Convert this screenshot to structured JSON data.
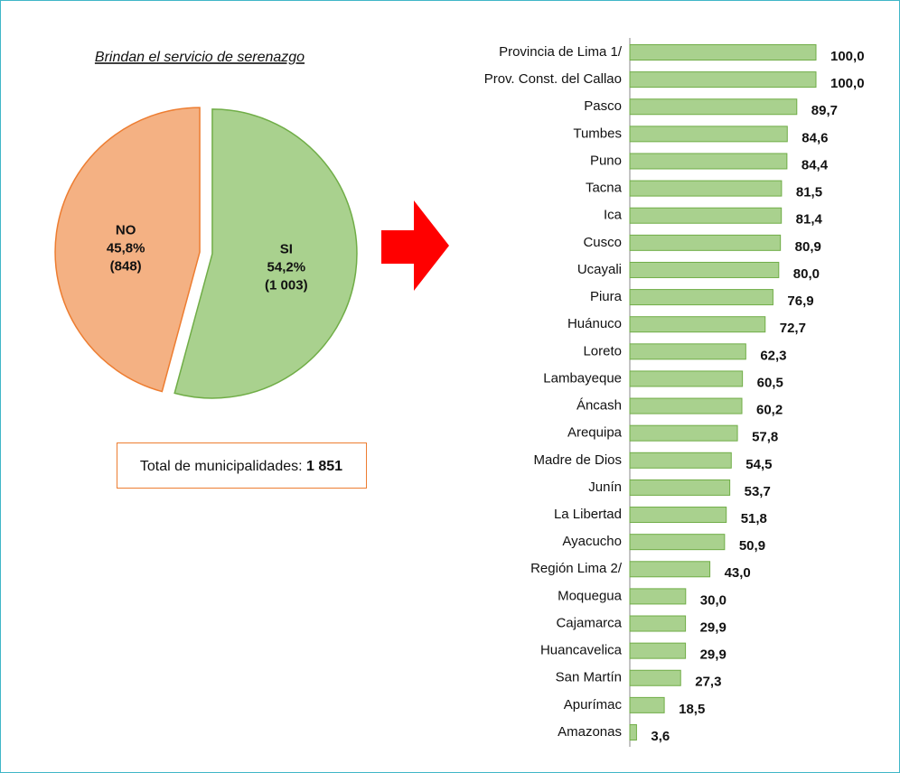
{
  "chart_data": [
    {
      "type": "pie",
      "title": "Brindan el servicio de serenazgo",
      "categories": [
        "SI",
        "NO"
      ],
      "values": [
        54.2,
        45.8
      ],
      "value_labels": [
        "54,2%",
        "45,8%"
      ],
      "counts": [
        1003,
        848
      ],
      "count_labels": [
        "(1 003)",
        "(848)"
      ],
      "colors": [
        "#a9d18e",
        "#f4b183"
      ],
      "edge_colors": [
        "#70ad47",
        "#ed7d31"
      ],
      "total_text": "Total de municipalidades:",
      "total": 1851,
      "total_label": "1 851"
    },
    {
      "type": "barh",
      "color": "#a9d18e",
      "edge_color": "#70ad47",
      "xlim": [
        0,
        100
      ],
      "categories": [
        "Provincia de Lima 1/",
        "Prov. Const. del Callao",
        "Pasco",
        "Tumbes",
        "Puno",
        "Tacna",
        "Ica",
        "Cusco",
        "Ucayali",
        "Piura",
        "Huánuco",
        "Loreto",
        "Lambayeque",
        "Áncash",
        "Arequipa",
        "Madre de Dios",
        "Junín",
        "La Libertad",
        "Ayacucho",
        "Región Lima 2/",
        "Moquegua",
        "Cajamarca",
        "Huancavelica",
        "San Martín",
        "Apurímac",
        "Amazonas"
      ],
      "values": [
        100.0,
        100.0,
        89.7,
        84.6,
        84.4,
        81.5,
        81.4,
        80.9,
        80.0,
        76.9,
        72.7,
        62.3,
        60.5,
        60.2,
        57.8,
        54.5,
        53.7,
        51.8,
        50.9,
        43.0,
        30.0,
        29.9,
        29.9,
        27.3,
        18.5,
        3.6
      ],
      "value_labels": [
        "100,0",
        "100,0",
        "89,7",
        "84,6",
        "84,4",
        "81,5",
        "81,4",
        "80,9",
        "80,0",
        "76,9",
        "72,7",
        "62,3",
        "60,5",
        "60,2",
        "57,8",
        "54,5",
        "53,7",
        "51,8",
        "50,9",
        "43,0",
        "30,0",
        "29,9",
        "29,9",
        "27,3",
        "18,5",
        "3,6"
      ]
    }
  ]
}
